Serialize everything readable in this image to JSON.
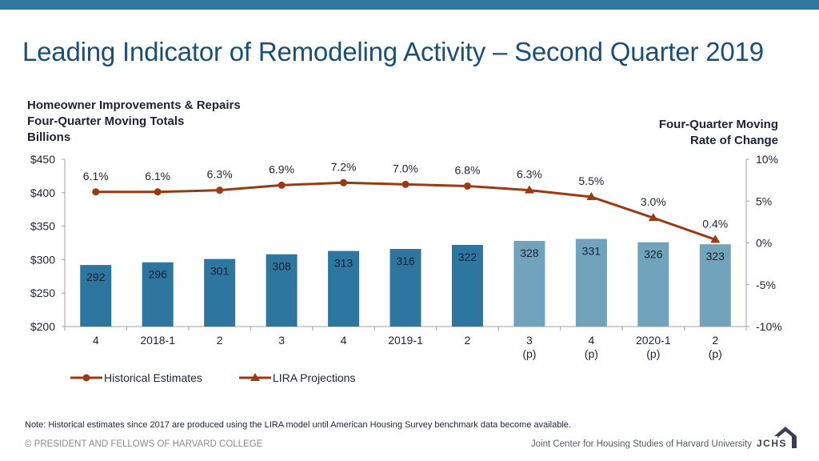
{
  "header": {
    "title": "Leading Indicator of Remodeling Activity – Second Quarter 2019"
  },
  "left_axis_title": [
    "Homeowner Improvements & Repairs",
    "Four-Quarter Moving Totals",
    "Billions"
  ],
  "right_axis_title": [
    "Four-Quarter Moving",
    "Rate of Change"
  ],
  "colors": {
    "top_bar": "#2f78a0",
    "title": "#1b4f75",
    "bar_historical": "#2d76a0",
    "bar_projected": "#72a3bd",
    "line": "#9b3a12",
    "axis": "#a0a0a8",
    "text": "#1d2235"
  },
  "chart_data": {
    "type": "bar+line",
    "title": "Leading Indicator of Remodeling Activity – Second Quarter 2019",
    "categories": [
      {
        "label": "4",
        "sub": ""
      },
      {
        "label": "2018-1",
        "sub": ""
      },
      {
        "label": "2",
        "sub": ""
      },
      {
        "label": "3",
        "sub": ""
      },
      {
        "label": "4",
        "sub": ""
      },
      {
        "label": "2019-1",
        "sub": ""
      },
      {
        "label": "2",
        "sub": ""
      },
      {
        "label": "3",
        "sub": "(p)"
      },
      {
        "label": "4",
        "sub": "(p)"
      },
      {
        "label": "2020-1",
        "sub": "(p)"
      },
      {
        "label": "2",
        "sub": "(p)"
      }
    ],
    "bars": {
      "name": "Homeowner Improvements & Repairs (Billions)",
      "values": [
        292,
        296,
        301,
        308,
        313,
        316,
        322,
        328,
        331,
        326,
        323
      ],
      "projected": [
        false,
        false,
        false,
        false,
        false,
        false,
        false,
        true,
        true,
        true,
        true
      ],
      "labels": [
        "292",
        "296",
        "301",
        "308",
        "313",
        "316",
        "322",
        "328",
        "331",
        "326",
        "323"
      ]
    },
    "series": [
      {
        "name": "Historical Estimates",
        "marker": "circle",
        "indices": [
          0,
          1,
          2,
          3,
          4,
          5,
          6
        ],
        "values": [
          6.1,
          6.1,
          6.3,
          6.9,
          7.2,
          7.0,
          6.8
        ],
        "labels": [
          "6.1%",
          "6.1%",
          "6.3%",
          "6.9%",
          "7.2%",
          "7.0%",
          "6.8%"
        ]
      },
      {
        "name": "LIRA Projections",
        "marker": "triangle",
        "indices": [
          6,
          7,
          8,
          9,
          10
        ],
        "values": [
          6.8,
          6.3,
          5.5,
          3.0,
          0.4
        ],
        "labels": [
          "",
          "6.3%",
          "5.5%",
          "3.0%",
          "0.4%"
        ]
      }
    ],
    "y_left": {
      "label": "Billions",
      "range": [
        200,
        450
      ],
      "ticks": [
        200,
        250,
        300,
        350,
        400,
        450
      ],
      "tick_labels": [
        "$200",
        "$250",
        "$300",
        "$350",
        "$400",
        "$450"
      ]
    },
    "y_right": {
      "label": "Four-Quarter Moving Rate of Change",
      "range": [
        -10,
        10
      ],
      "ticks": [
        -10,
        -5,
        0,
        5,
        10
      ],
      "tick_labels": [
        "-10%",
        "-5%",
        "0%",
        "5%",
        "10%"
      ]
    },
    "grid": false,
    "legend_position": "bottom-left"
  },
  "legend": {
    "items": [
      {
        "label": "Historical Estimates",
        "marker": "circle"
      },
      {
        "label": "LIRA Projections",
        "marker": "triangle"
      }
    ]
  },
  "footer": {
    "note": "Note: Historical estimates since 2017 are produced using the LIRA model until American Housing Survey benchmark data become available.",
    "copyright": "© PRESIDENT AND FELLOWS OF HARVARD COLLEGE",
    "organization": "Joint Center for Housing Studies of Harvard University",
    "logo_text": "JCHS"
  }
}
